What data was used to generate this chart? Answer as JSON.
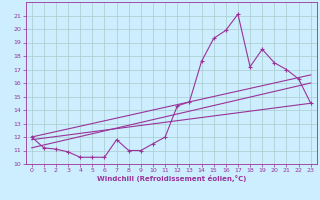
{
  "xlabel": "Windchill (Refroidissement éolien,°C)",
  "bg_color": "#cceeff",
  "grid_color": "#aacccc",
  "line_color": "#993399",
  "xlim": [
    -0.5,
    23.5
  ],
  "ylim": [
    10,
    22
  ],
  "yticks": [
    10,
    11,
    12,
    13,
    14,
    15,
    16,
    17,
    18,
    19,
    20,
    21
  ],
  "xticks": [
    0,
    1,
    2,
    3,
    4,
    5,
    6,
    7,
    8,
    9,
    10,
    11,
    12,
    13,
    14,
    15,
    16,
    17,
    18,
    19,
    20,
    21,
    22,
    23
  ],
  "series1_x": [
    0,
    1,
    2,
    3,
    4,
    5,
    6,
    7,
    8,
    9,
    10,
    11,
    12,
    13,
    14,
    15,
    16,
    17,
    18,
    19,
    20,
    21,
    22,
    23
  ],
  "series1_y": [
    12.0,
    11.2,
    11.1,
    10.9,
    10.5,
    10.5,
    10.5,
    11.8,
    11.0,
    11.0,
    11.5,
    12.0,
    14.3,
    14.6,
    17.6,
    19.3,
    19.9,
    21.1,
    17.2,
    18.5,
    17.5,
    17.0,
    16.3,
    14.5
  ],
  "series2_x": [
    0,
    23
  ],
  "series2_y": [
    11.8,
    14.5
  ],
  "series3_x": [
    0,
    23
  ],
  "series3_y": [
    11.2,
    16.0
  ],
  "series4_x": [
    0,
    23
  ],
  "series4_y": [
    12.0,
    16.6
  ]
}
